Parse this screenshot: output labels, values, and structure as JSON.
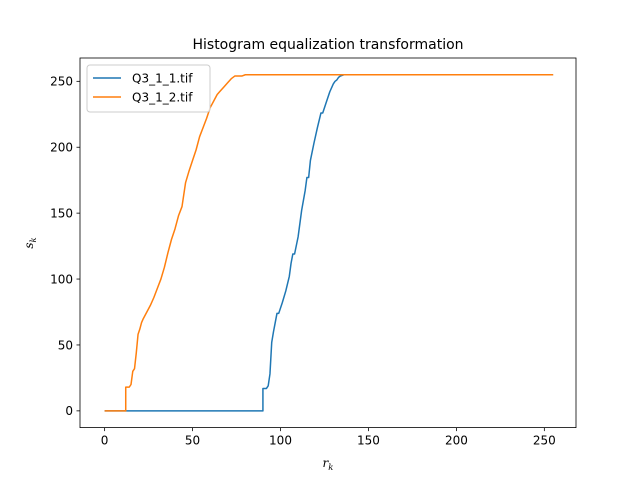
{
  "chart_data": {
    "type": "line",
    "title": "Histogram equalization transformation",
    "xlabel": "r",
    "xlabel_sub": "k",
    "ylabel": "s",
    "ylabel_sub": "k",
    "xlim": [
      -14,
      268
    ],
    "ylim": [
      -12.7,
      267.7
    ],
    "xticks": [
      0,
      50,
      100,
      150,
      200,
      250
    ],
    "yticks": [
      0,
      50,
      100,
      150,
      200,
      250
    ],
    "grid": false,
    "legend_position": "upper-left",
    "series": [
      {
        "name": "Q3_1_1.tif",
        "color": "#1f77b4",
        "points": [
          [
            0,
            0
          ],
          [
            90,
            0
          ],
          [
            90,
            17
          ],
          [
            92,
            17
          ],
          [
            93,
            19
          ],
          [
            94,
            28
          ],
          [
            95,
            52
          ],
          [
            96,
            60
          ],
          [
            97,
            67
          ],
          [
            98,
            74
          ],
          [
            99,
            74
          ],
          [
            101,
            82
          ],
          [
            103,
            91
          ],
          [
            105,
            102
          ],
          [
            106,
            112
          ],
          [
            107,
            119
          ],
          [
            108,
            119
          ],
          [
            110,
            132
          ],
          [
            112,
            152
          ],
          [
            114,
            167
          ],
          [
            115,
            177
          ],
          [
            116,
            177
          ],
          [
            117,
            190
          ],
          [
            119,
            203
          ],
          [
            121,
            215
          ],
          [
            123,
            226
          ],
          [
            124,
            226
          ],
          [
            126,
            234
          ],
          [
            128,
            242
          ],
          [
            130,
            248
          ],
          [
            131,
            250
          ],
          [
            132,
            251
          ],
          [
            133,
            253
          ],
          [
            134,
            254
          ],
          [
            136,
            255
          ],
          [
            255,
            255
          ]
        ]
      },
      {
        "name": "Q3_1_2.tif",
        "color": "#ff7f0e",
        "points": [
          [
            0,
            0
          ],
          [
            12,
            0
          ],
          [
            12,
            18
          ],
          [
            14,
            18
          ],
          [
            15,
            20
          ],
          [
            16,
            30
          ],
          [
            17,
            32
          ],
          [
            18,
            44
          ],
          [
            19,
            58
          ],
          [
            20,
            62
          ],
          [
            21,
            67
          ],
          [
            22,
            70
          ],
          [
            24,
            75
          ],
          [
            26,
            80
          ],
          [
            28,
            86
          ],
          [
            30,
            93
          ],
          [
            32,
            100
          ],
          [
            34,
            109
          ],
          [
            36,
            120
          ],
          [
            38,
            130
          ],
          [
            40,
            138
          ],
          [
            42,
            148
          ],
          [
            44,
            155
          ],
          [
            46,
            173
          ],
          [
            48,
            182
          ],
          [
            50,
            190
          ],
          [
            52,
            198
          ],
          [
            54,
            208
          ],
          [
            56,
            215
          ],
          [
            58,
            222
          ],
          [
            60,
            230
          ],
          [
            62,
            235
          ],
          [
            64,
            240
          ],
          [
            66,
            243
          ],
          [
            68,
            246
          ],
          [
            70,
            249
          ],
          [
            72,
            252
          ],
          [
            74,
            254
          ],
          [
            76,
            254
          ],
          [
            78,
            254
          ],
          [
            80,
            255
          ],
          [
            255,
            255
          ]
        ]
      }
    ]
  }
}
